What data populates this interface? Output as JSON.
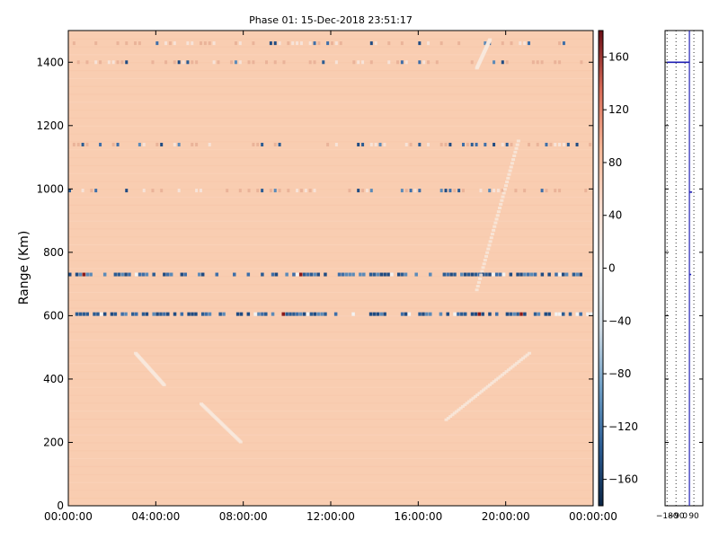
{
  "chart_data": {
    "type": "heatmap",
    "title": "Phase 01: 15-Dec-2018 23:51:17",
    "xlabel": "",
    "ylabel": "Range (Km)",
    "xlim": [
      "00:00:00",
      "24:00:00"
    ],
    "ylim": [
      0,
      1500
    ],
    "x_ticks": [
      "00:00:00",
      "04:00:00",
      "08:00:00",
      "12:00:00",
      "16:00:00",
      "20:00:00",
      "00:00:00"
    ],
    "x_tick_hours": [
      0,
      4,
      8,
      12,
      16,
      20,
      24
    ],
    "y_ticks": [
      0,
      200,
      400,
      600,
      800,
      1000,
      1200,
      1400
    ],
    "colorbar": {
      "range": [
        -180,
        180
      ],
      "ticks": [
        160,
        120,
        80,
        40,
        0,
        -40,
        -80,
        -120,
        -160
      ],
      "colors": [
        "#0b2545",
        "#2b5c93",
        "#6f9fc6",
        "#d0dbe4",
        "#f2f2f2",
        "#f8ded0",
        "#f6b898",
        "#d86b57",
        "#6a0d15"
      ]
    },
    "background_color": "#f9cdb1",
    "band_rows_km": [
      1460,
      1400,
      1140,
      995,
      730,
      605
    ],
    "blue_band_km": [
      730,
      605
    ],
    "streaks": [
      {
        "hours": [
          6,
          7.8
        ],
        "km": [
          320,
          200
        ]
      },
      {
        "hours": [
          17.2,
          21
        ],
        "km": [
          270,
          480
        ]
      },
      {
        "hours": [
          18.6,
          20.5
        ],
        "km": [
          680,
          1150
        ]
      },
      {
        "hours": [
          18.6,
          19.2
        ],
        "km": [
          1380,
          1470
        ]
      },
      {
        "hours": [
          3,
          4.3
        ],
        "km": [
          480,
          380
        ]
      }
    ],
    "side_panel": {
      "x_ticks": [
        "−180",
        "−90",
        "0",
        "90"
      ],
      "x_tick_values": [
        -180,
        -90,
        0,
        90
      ],
      "xlim": [
        -200,
        180
      ],
      "profile_x": 45,
      "spikes_km": [
        1400,
        990,
        730
      ]
    }
  }
}
